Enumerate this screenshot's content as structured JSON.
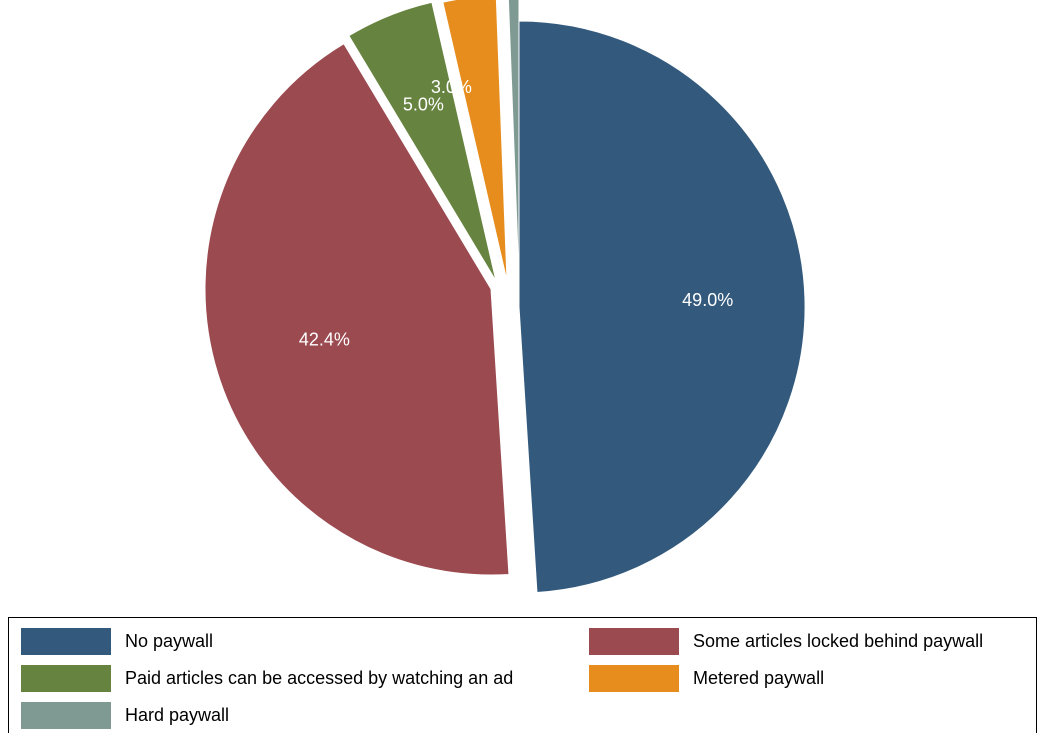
{
  "chart_data": {
    "type": "pie",
    "title": "",
    "start_angle_deg": 0,
    "direction": "clockwise",
    "exploded": true,
    "legend_position": "bottom",
    "slices": [
      {
        "label": "No paywall",
        "value": 49.0,
        "value_label": "49.0%",
        "color": "#335a7d"
      },
      {
        "label": "Some articles locked behind paywall",
        "value": 42.4,
        "value_label": "42.4%",
        "color": "#9b4a50"
      },
      {
        "label": "Paid articles can be accessed by watching an ad",
        "value": 5.0,
        "value_label": "5.0%",
        "color": "#66833f"
      },
      {
        "label": "Metered paywall",
        "value": 3.0,
        "value_label": "3.0%",
        "color": "#e68d1e"
      },
      {
        "label": "Hard paywall",
        "value": 0.6,
        "value_label": "",
        "color": "#7f9a92"
      }
    ]
  }
}
